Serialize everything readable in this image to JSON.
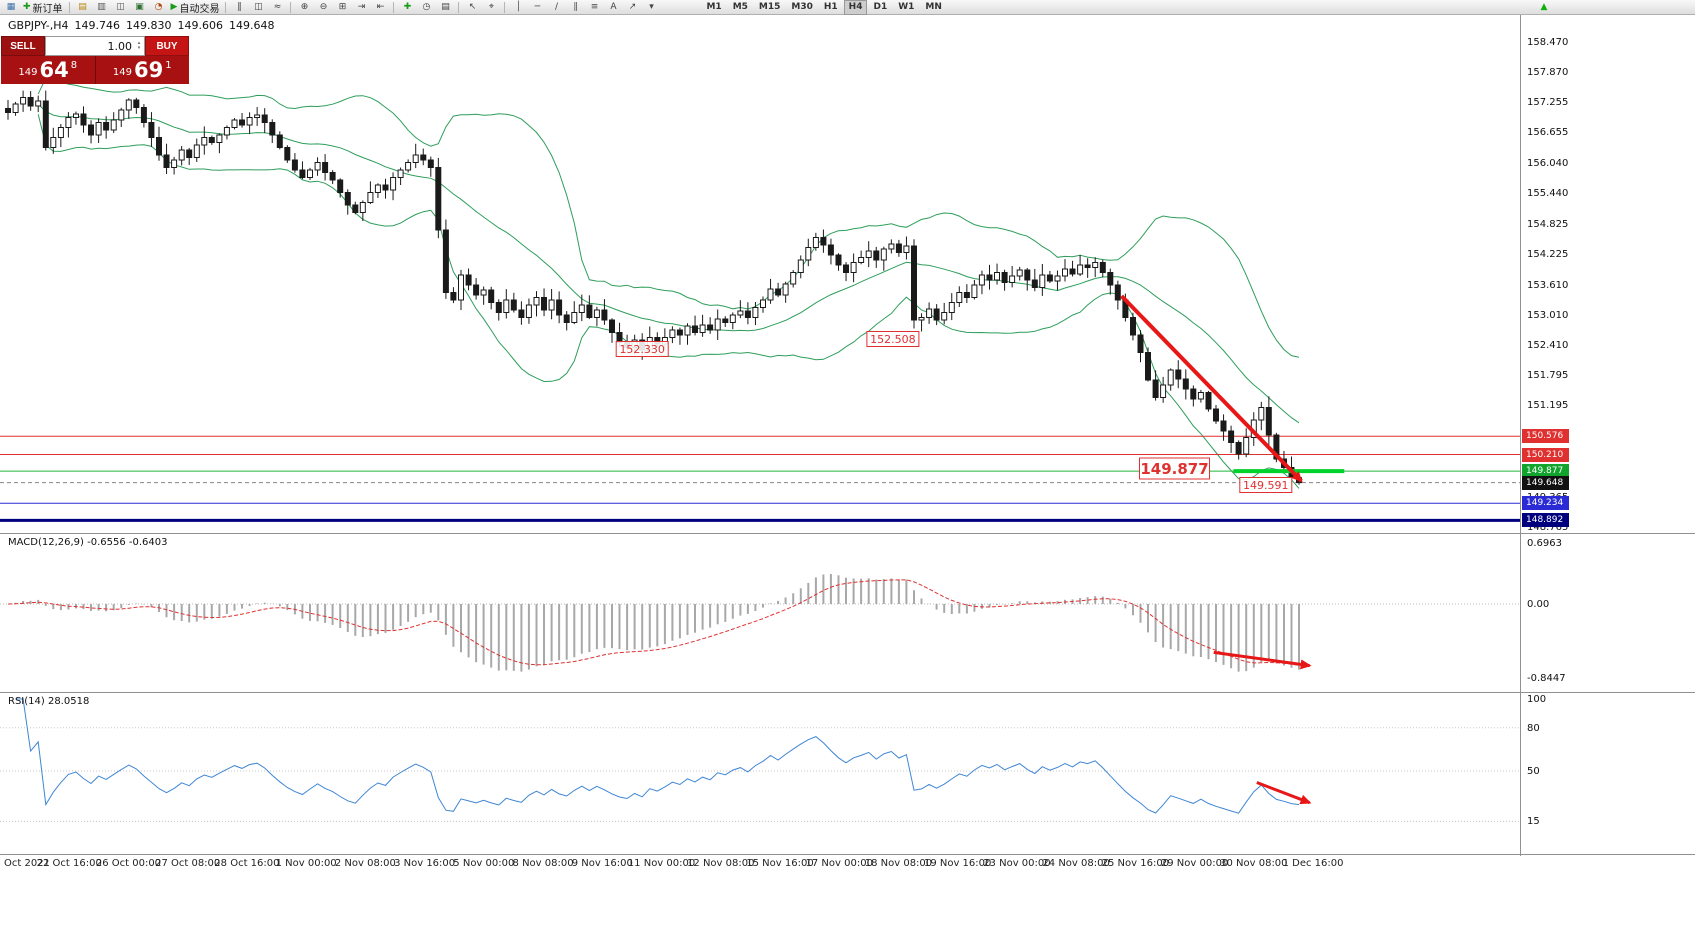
{
  "toolbar": {
    "items": [
      {
        "t": "icon",
        "name": "new-chart-button",
        "g": "▦",
        "c": "#3a6ea5"
      },
      {
        "t": "btn",
        "name": "new-order-button",
        "label": "新订单",
        "g": "✚",
        "c": "#1a9c1a"
      },
      {
        "t": "sep"
      },
      {
        "t": "icon",
        "name": "market-watch-button",
        "g": "▤",
        "c": "#b8860b"
      },
      {
        "t": "icon",
        "name": "data-window-button",
        "g": "▥",
        "c": "#555555"
      },
      {
        "t": "icon",
        "name": "navigator-button",
        "g": "◫",
        "c": "#555555"
      },
      {
        "t": "icon",
        "name": "terminal-button",
        "g": "▣",
        "c": "#2f6f2f"
      },
      {
        "t": "icon",
        "name": "strategy-tester-button",
        "g": "◔",
        "c": "#b04000"
      },
      {
        "t": "btn",
        "name": "auto-trading-button",
        "label": "自动交易",
        "g": "▶",
        "c": "#1a9c1a"
      },
      {
        "t": "sep"
      },
      {
        "t": "icon",
        "name": "bar-chart-button",
        "g": "‖",
        "c": "#444444"
      },
      {
        "t": "icon",
        "name": "candlestick-chart-button",
        "g": "◫",
        "c": "#444444"
      },
      {
        "t": "icon",
        "name": "line-chart-button",
        "g": "≈",
        "c": "#444444"
      },
      {
        "t": "sep"
      },
      {
        "t": "icon",
        "name": "zoom-in-button",
        "g": "⊕",
        "c": "#444444"
      },
      {
        "t": "icon",
        "name": "zoom-out-button",
        "g": "⊖",
        "c": "#444444"
      },
      {
        "t": "icon",
        "name": "tile-windows-button",
        "g": "⊞",
        "c": "#444444"
      },
      {
        "t": "icon",
        "name": "auto-scroll-button",
        "g": "⇥",
        "c": "#444444"
      },
      {
        "t": "icon",
        "name": "chart-shift-button",
        "g": "⇤",
        "c": "#444444"
      },
      {
        "t": "sep"
      },
      {
        "t": "icon",
        "name": "indicators-button",
        "g": "✚",
        "c": "#1a9c1a"
      },
      {
        "t": "icon",
        "name": "periods-button",
        "g": "◷",
        "c": "#444444"
      },
      {
        "t": "icon",
        "name": "templates-button",
        "g": "▤",
        "c": "#444444"
      },
      {
        "t": "sep"
      },
      {
        "t": "icon",
        "name": "cursor-button",
        "g": "↖",
        "c": "#444444"
      },
      {
        "t": "icon",
        "name": "crosshair-button",
        "g": "⌖",
        "c": "#444444"
      },
      {
        "t": "sep"
      },
      {
        "t": "icon",
        "name": "vertical-line-button",
        "g": "│",
        "c": "#444444"
      },
      {
        "t": "icon",
        "name": "horizontal-line-button",
        "g": "─",
        "c": "#444444"
      },
      {
        "t": "icon",
        "name": "trendline-button",
        "g": "∕",
        "c": "#444444"
      },
      {
        "t": "icon",
        "name": "channel-button",
        "g": "∥",
        "c": "#444444"
      },
      {
        "t": "icon",
        "name": "fibonacci-button",
        "g": "≡",
        "c": "#444444"
      },
      {
        "t": "icon",
        "name": "text-button",
        "g": "A",
        "c": "#444444"
      },
      {
        "t": "icon",
        "name": "arrows-button",
        "g": "↗",
        "c": "#444444"
      },
      {
        "t": "icon",
        "name": "shapes-button",
        "g": "▾",
        "c": "#444444"
      }
    ],
    "timeframes": [
      "M1",
      "M5",
      "M15",
      "M30",
      "H1",
      "H4",
      "D1",
      "W1",
      "MN"
    ],
    "timeframe_active": "H4",
    "right_icon": {
      "name": "buy-arrow-button",
      "g": "▲",
      "c": "#0faf0f"
    }
  },
  "chart_header": {
    "symbol": "GBPJPY-,H4",
    "open": "149.746",
    "high": "149.830",
    "low": "149.606",
    "close": "149.648"
  },
  "trade_panel": {
    "sell_label": "SELL",
    "buy_label": "BUY",
    "volume": "1.00",
    "sell_price_small": "149",
    "sell_price_big": "64",
    "sell_price_sup": "8",
    "buy_price_small": "149",
    "buy_price_big": "69",
    "buy_price_sup": "1"
  },
  "price_scale": {
    "ticks": [
      "158.470",
      "157.870",
      "157.255",
      "156.655",
      "156.040",
      "155.440",
      "154.825",
      "154.225",
      "153.610",
      "153.010",
      "152.410",
      "151.795",
      "151.195",
      "149.365",
      "148.765"
    ]
  },
  "indicators": {
    "macd_label": "MACD(12,26,9) -0.6556 -0.6403",
    "macd_scale": [
      "0.6963",
      "0.00",
      "-0.8447"
    ],
    "rsi_label": "RSI(14) 28.0518",
    "rsi_scale": [
      "100",
      "80",
      "50",
      "15"
    ]
  },
  "time_axis": {
    "labels": [
      "Oct 2021",
      "22 Oct 16:00",
      "26 Oct 00:00",
      "27 Oct 08:00",
      "28 Oct 16:00",
      "1 Nov 00:00",
      "2 Nov 08:00",
      "3 Nov 16:00",
      "5 Nov 00:00",
      "8 Nov 08:00",
      "9 Nov 16:00",
      "11 Nov 00:00",
      "12 Nov 08:00",
      "15 Nov 16:00",
      "17 Nov 00:00",
      "18 Nov 08:00",
      "19 Nov 16:00",
      "23 Nov 00:00",
      "24 Nov 08:00",
      "25 Nov 16:00",
      "29 Nov 00:00",
      "30 Nov 08:00",
      "1 Dec 16:00"
    ]
  },
  "colors": {
    "bollinger": "#2e9e5b",
    "candle": "#1a1a1a",
    "macd_hist": "#a8a8a8",
    "macd_signal": "#e03131",
    "rsi_line": "#3f86d4",
    "arrow": "#e81717",
    "green_segment": "#00d22c",
    "label_red": "#e03131",
    "label_green": "#12a52e",
    "label_black": "#111111",
    "label_blue": "#2b2bd5",
    "label_navy": "#00007f"
  },
  "chart_data": {
    "type": "candlestick",
    "symbol": "GBPJPY-",
    "timeframe": "H4",
    "ylim": [
      148.7,
      159.0
    ],
    "closes": [
      157.05,
      157.22,
      157.35,
      157.18,
      157.28,
      156.35,
      156.55,
      156.75,
      156.95,
      157.02,
      156.8,
      156.6,
      156.85,
      156.7,
      156.9,
      157.1,
      157.3,
      157.15,
      156.85,
      156.55,
      156.2,
      155.95,
      156.1,
      156.3,
      156.15,
      156.4,
      156.55,
      156.45,
      156.6,
      156.75,
      156.9,
      156.8,
      156.95,
      157.0,
      156.85,
      156.6,
      156.35,
      156.1,
      155.9,
      155.75,
      155.9,
      156.05,
      155.85,
      155.7,
      155.45,
      155.2,
      155.05,
      155.25,
      155.45,
      155.6,
      155.5,
      155.75,
      155.9,
      156.05,
      156.2,
      156.1,
      155.95,
      154.7,
      153.45,
      153.3,
      153.8,
      153.6,
      153.4,
      153.5,
      153.25,
      153.05,
      153.3,
      153.1,
      152.95,
      153.2,
      153.35,
      153.1,
      153.3,
      153.0,
      152.85,
      153.05,
      153.2,
      152.95,
      153.1,
      152.9,
      152.65,
      152.45,
      152.35,
      152.5,
      152.3,
      152.55,
      152.42,
      152.55,
      152.7,
      152.6,
      152.78,
      152.65,
      152.8,
      152.7,
      152.92,
      152.85,
      153.0,
      153.08,
      152.95,
      153.15,
      153.3,
      153.52,
      153.4,
      153.62,
      153.85,
      154.1,
      154.35,
      154.55,
      154.4,
      154.2,
      154.0,
      153.85,
      154.05,
      154.15,
      154.28,
      154.1,
      154.32,
      154.42,
      154.25,
      154.38,
      152.9,
      152.95,
      153.12,
      152.9,
      153.05,
      153.25,
      153.45,
      153.35,
      153.6,
      153.8,
      153.7,
      153.85,
      153.65,
      153.78,
      153.9,
      153.7,
      153.55,
      153.8,
      153.68,
      153.78,
      153.92,
      153.82,
      154.0,
      153.95,
      154.05,
      153.85,
      153.6,
      153.3,
      152.95,
      152.6,
      152.25,
      151.7,
      151.35,
      151.6,
      151.9,
      151.72,
      151.52,
      151.32,
      151.45,
      151.12,
      150.88,
      150.68,
      150.45,
      150.22,
      150.55,
      150.9,
      151.15,
      150.6,
      150.12,
      149.95,
      149.746,
      149.648
    ],
    "last_ohlc": [
      149.746,
      149.83,
      149.606,
      149.648
    ],
    "bollinger": {
      "period": 20,
      "deviation": 2
    },
    "macd": {
      "fast": 12,
      "slow": 26,
      "signal": 9,
      "last_values": [
        -0.6556,
        -0.6403
      ]
    },
    "rsi": {
      "period": 14,
      "last_value": 28.0518
    },
    "levels": [
      {
        "price": 150.576,
        "color": "#e03131",
        "width": 1,
        "label": "150.576",
        "label_bg": "#e03131"
      },
      {
        "price": 150.21,
        "color": "#e03131",
        "width": 1,
        "label": "150.210",
        "label_bg": "#e03131"
      },
      {
        "price": 149.877,
        "color": "#22b83c",
        "width": 1,
        "label": "149.877",
        "label_bg": "#12a52e"
      },
      {
        "price": 149.648,
        "color": "#888888",
        "width": 1,
        "dash": "4,3",
        "label": "149.648",
        "label_bg": "#111111"
      },
      {
        "price": 149.234,
        "color": "#2b2bd5",
        "width": 1,
        "label": "149.234",
        "label_bg": "#2b2bd5"
      },
      {
        "price": 148.892,
        "color": "#00007f",
        "width": 3,
        "label": "148.892",
        "label_bg": "#00007f"
      }
    ],
    "annotations": {
      "price_boxes": [
        {
          "text": "152.330",
          "bar": 84,
          "price": 152.32
        },
        {
          "text": "152.508",
          "bar": 117.2,
          "price": 152.52
        },
        {
          "text": "149.877",
          "bar": 154.5,
          "price": 149.93,
          "size": "large"
        },
        {
          "text": "149.591",
          "bar": 166.6,
          "price": 149.6
        }
      ],
      "trend_arrow": {
        "from_bar": 147.5,
        "from_price": 153.38,
        "to_bar": 171.3,
        "to_price": 149.68
      },
      "green_segment": {
        "from_bar": 162.3,
        "to_bar": 177,
        "price": 149.877
      },
      "macd_arrow": {
        "from_bar": 159.7,
        "from_value": -0.55,
        "to_bar": 172.4,
        "to_value": -0.7
      },
      "rsi_arrow": {
        "from_bar": 165.4,
        "from_value": 42,
        "to_bar": 172.4,
        "to_value": 28
      }
    }
  }
}
